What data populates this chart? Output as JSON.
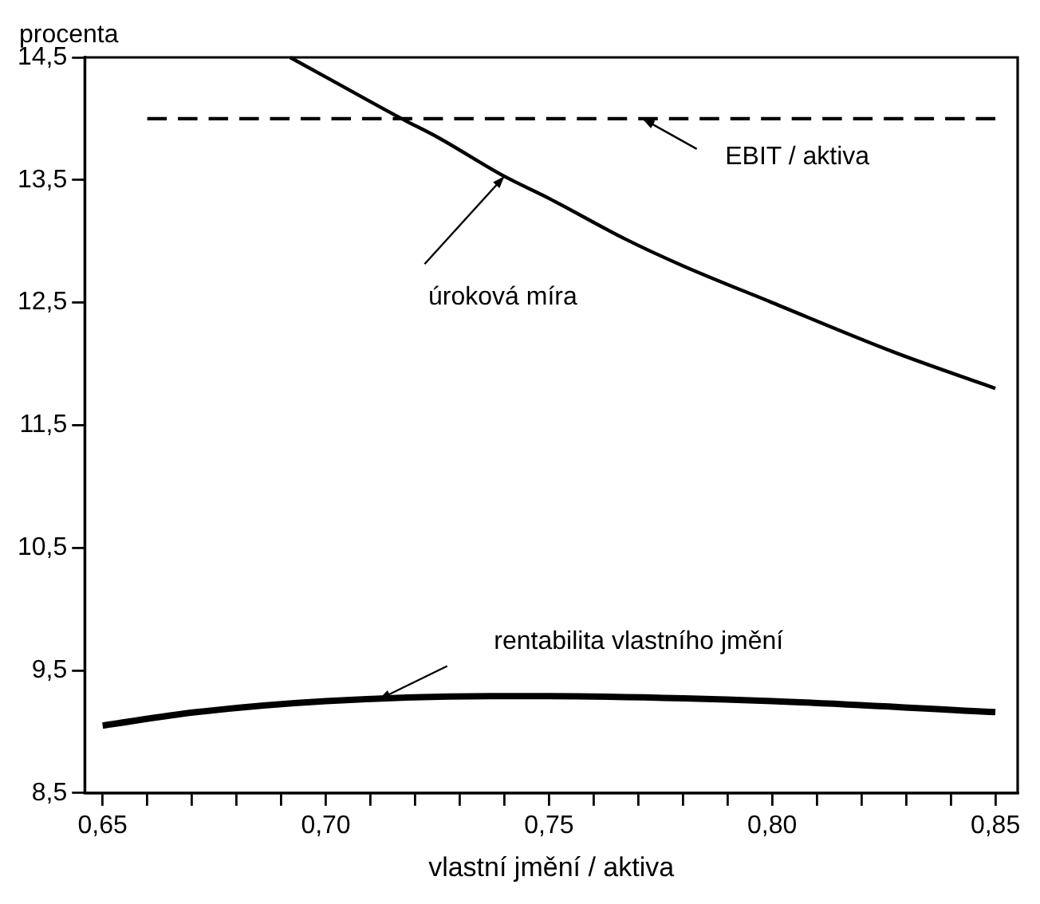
{
  "chart_data": {
    "type": "line",
    "xlabel": "vlastní jmění / aktiva",
    "ylabel": "procenta",
    "xlim": [
      0.646,
      0.855
    ],
    "ylim": [
      8.5,
      14.5
    ],
    "xticks": [
      {
        "value": 0.65,
        "label": "0,65"
      },
      {
        "value": 0.66,
        "label": null
      },
      {
        "value": 0.67,
        "label": null
      },
      {
        "value": 0.68,
        "label": null
      },
      {
        "value": 0.69,
        "label": null
      },
      {
        "value": 0.7,
        "label": "0,70"
      },
      {
        "value": 0.71,
        "label": null
      },
      {
        "value": 0.72,
        "label": null
      },
      {
        "value": 0.73,
        "label": null
      },
      {
        "value": 0.74,
        "label": null
      },
      {
        "value": 0.75,
        "label": "0,75"
      },
      {
        "value": 0.76,
        "label": null
      },
      {
        "value": 0.77,
        "label": null
      },
      {
        "value": 0.78,
        "label": null
      },
      {
        "value": 0.79,
        "label": null
      },
      {
        "value": 0.8,
        "label": "0,80"
      },
      {
        "value": 0.81,
        "label": null
      },
      {
        "value": 0.82,
        "label": null
      },
      {
        "value": 0.83,
        "label": null
      },
      {
        "value": 0.84,
        "label": null
      },
      {
        "value": 0.85,
        "label": "0,85"
      }
    ],
    "yticks": [
      {
        "value": 8.5,
        "label": "8,5"
      },
      {
        "value": 9.5,
        "label": "9,5"
      },
      {
        "value": 10.5,
        "label": "10,5"
      },
      {
        "value": 11.5,
        "label": "11,5"
      },
      {
        "value": 12.5,
        "label": "12,5"
      },
      {
        "value": 13.5,
        "label": "13,5"
      },
      {
        "value": 14.5,
        "label": "14,5"
      }
    ],
    "grid": false,
    "legend": false,
    "marker": "none",
    "series": [
      {
        "name": "úroková míra",
        "color": "#000000",
        "line_style": "solid",
        "x": [
          0.692,
          0.7,
          0.717,
          0.725,
          0.74,
          0.75,
          0.767,
          0.78,
          0.8,
          0.827,
          0.85
        ],
        "values": [
          14.5,
          14.34,
          14.0,
          13.85,
          13.53,
          13.35,
          13.02,
          12.8,
          12.5,
          12.1,
          11.8
        ]
      },
      {
        "name": "EBIT / aktiva",
        "color": "#000000",
        "line_style": "dashed",
        "x": [
          0.66,
          0.85
        ],
        "values": [
          14.0,
          14.0
        ]
      },
      {
        "name": "rentabilita vlastního jmění",
        "color": "#000000",
        "line_style": "solid",
        "x": [
          0.65,
          0.671,
          0.7,
          0.737,
          0.75,
          0.8,
          0.85
        ],
        "values": [
          9.05,
          9.16,
          9.25,
          9.29,
          9.29,
          9.25,
          9.16
        ]
      }
    ]
  }
}
